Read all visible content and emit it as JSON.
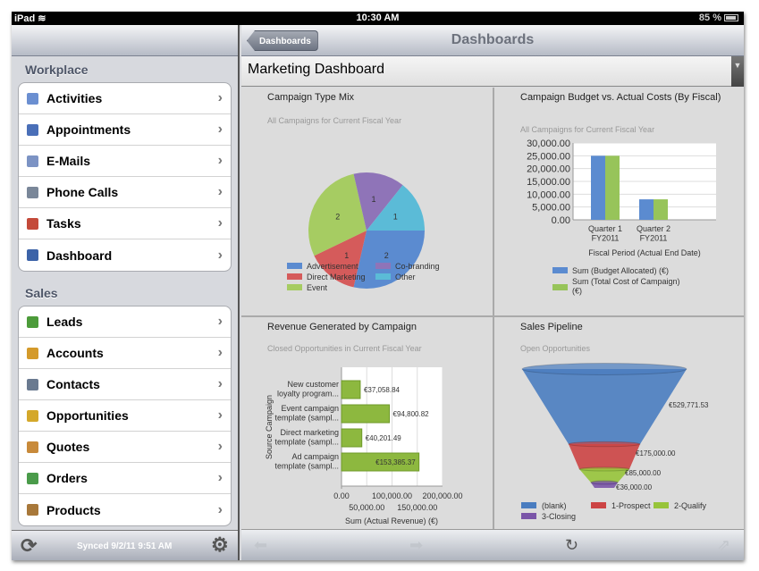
{
  "status": {
    "device": "iPad",
    "time": "10:30 AM",
    "battery": "85 %",
    "battery_level": 0.85
  },
  "sidebar": {
    "sections": [
      {
        "title": "Workplace",
        "items": [
          {
            "label": "Activities",
            "icon": "activities-icon",
            "color": "#6b8fd1"
          },
          {
            "label": "Appointments",
            "icon": "calendar-icon",
            "color": "#4a6fb8"
          },
          {
            "label": "E-Mails",
            "icon": "envelope-icon",
            "color": "#7c93c4"
          },
          {
            "label": "Phone Calls",
            "icon": "phone-icon",
            "color": "#7a8799"
          },
          {
            "label": "Tasks",
            "icon": "tasks-icon",
            "color": "#c44a3a"
          },
          {
            "label": "Dashboard",
            "icon": "dashboard-icon",
            "color": "#3c63a8"
          }
        ]
      },
      {
        "title": "Sales",
        "items": [
          {
            "label": "Leads",
            "icon": "leads-icon",
            "color": "#4c9b3a"
          },
          {
            "label": "Accounts",
            "icon": "accounts-icon",
            "color": "#d49a2a"
          },
          {
            "label": "Contacts",
            "icon": "contacts-icon",
            "color": "#6a7a90"
          },
          {
            "label": "Opportunities",
            "icon": "opportunities-icon",
            "color": "#d4a82a"
          },
          {
            "label": "Quotes",
            "icon": "quotes-icon",
            "color": "#c88a3a"
          },
          {
            "label": "Orders",
            "icon": "orders-icon",
            "color": "#4a9b4a"
          },
          {
            "label": "Products",
            "icon": "products-icon",
            "color": "#a8783a"
          }
        ]
      }
    ],
    "synced": "Synced 9/2/11 9:51 AM"
  },
  "nav": {
    "back": "Dashboards",
    "title": "Dashboards"
  },
  "dashboard_select": "Marketing Dashboard",
  "chart_data": [
    {
      "type": "pie",
      "title": "Campaign Type Mix",
      "subtitle": "All Campaigns for Current Fiscal Year",
      "slices": [
        {
          "name": "Advertisement",
          "value": 2,
          "color": "#5b8bd0"
        },
        {
          "name": "Direct Marketing",
          "value": 1,
          "color": "#d55b5b"
        },
        {
          "name": "Event",
          "value": 2,
          "color": "#a6cc62"
        },
        {
          "name": "Co-branding",
          "value": 1,
          "color": "#8f74b8"
        },
        {
          "name": "Other",
          "value": 1,
          "color": "#5bbbd7"
        }
      ],
      "legend": "bottom"
    },
    {
      "type": "bar",
      "title": "Campaign Budget vs. Actual Costs (By Fiscal)",
      "subtitle": "All Campaigns for Current Fiscal Year",
      "categories": [
        [
          "Quarter 1",
          "FY2011"
        ],
        [
          "Quarter 2",
          "FY2011"
        ]
      ],
      "series": [
        {
          "name": "Sum (Budget Allocated) (€)",
          "values": [
            25000,
            8000
          ],
          "color": "#5b8bd0"
        },
        {
          "name": "Sum (Total Cost of Campaign) (€)",
          "values": [
            25000,
            8000
          ],
          "color": "#97c45a"
        }
      ],
      "xlabel": "Fiscal Period (Actual End Date)",
      "ylim": [
        0,
        30000
      ],
      "yticks": [
        "0.00",
        "5,000.00",
        "10,000.00",
        "15,000.00",
        "20,000.00",
        "25,000.00",
        "30,000.00"
      ],
      "grid": true,
      "legend": "bottom"
    },
    {
      "type": "bar",
      "orientation": "horizontal",
      "title": "Revenue Generated by Campaign",
      "subtitle": "Closed Opportunities in Current Fiscal Year",
      "categories": [
        [
          "New customer",
          "loyalty program..."
        ],
        [
          "Event campaign",
          "template (sampl..."
        ],
        [
          "Direct marketing",
          "template (sampl..."
        ],
        [
          "Ad campaign",
          "template (sampl..."
        ]
      ],
      "values": [
        37058.84,
        94800.82,
        40201.49,
        153385.37
      ],
      "labels": [
        "€37,058.84",
        "€94,800.82",
        "€40,201.49",
        "€153,385.37"
      ],
      "color": "#8db83f",
      "xlabel": "Sum (Actual Revenue) (€)",
      "ylabel": "Source Campaign",
      "xlim": [
        0,
        200000
      ],
      "xticks": [
        "0.00",
        "50,000.00",
        "100,000.00",
        "150,000.00",
        "200,000.00"
      ],
      "grid": true
    },
    {
      "type": "funnel",
      "title": "Sales Pipeline",
      "subtitle": "Open Opportunities",
      "stages": [
        {
          "name": "(blank)",
          "value": 529771.53,
          "label": "€529,771.53",
          "color": "#4a7dc0"
        },
        {
          "name": "1-Prospect",
          "value": 175000,
          "label": "€175,000.00",
          "color": "#cc4444"
        },
        {
          "name": "2-Qualify",
          "value": 85000,
          "label": "€85,000.00",
          "color": "#97c43a"
        },
        {
          "name": "3-Closing",
          "value": 36000,
          "label": "€36,000.00",
          "color": "#7a55a8"
        }
      ],
      "legend": "bottom"
    }
  ]
}
